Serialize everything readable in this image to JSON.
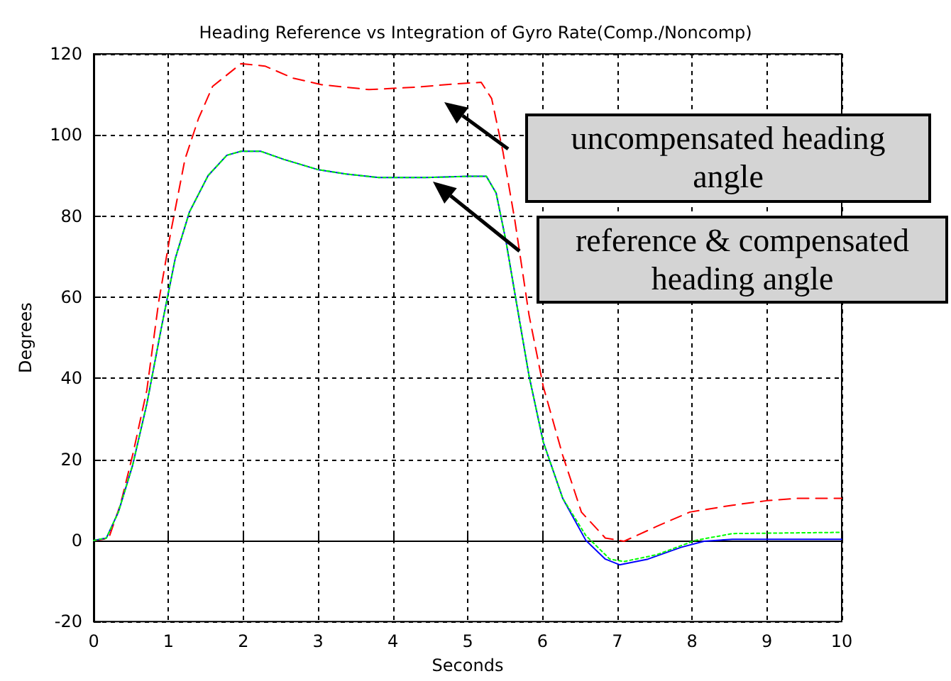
{
  "chart_data": {
    "type": "line",
    "title": "Heading Reference vs Integration of Gyro Rate(Comp./Noncomp)",
    "xlabel": "Seconds",
    "ylabel": "Degrees",
    "xlim": [
      0,
      10
    ],
    "xticks": [
      0,
      1,
      2,
      3,
      4,
      5,
      6,
      7,
      8,
      9,
      10
    ],
    "ylim": [
      -20,
      120
    ],
    "yticks": [
      -20,
      0,
      20,
      40,
      60,
      80,
      100,
      120
    ],
    "grid": true,
    "marker": "none",
    "series": [
      {
        "color": "#ff0000",
        "line_style": "dashed",
        "x": [
          0,
          0.2,
          0.36,
          0.52,
          0.71,
          0.87,
          1.03,
          1.22,
          1.4,
          1.59,
          1.97,
          2.29,
          2.67,
          3.05,
          3.68,
          4.32,
          4.82,
          5.18,
          5.32,
          5.47,
          5.63,
          5.82,
          6.01,
          6.27,
          6.52,
          6.84,
          7.09,
          7.53,
          7.97,
          8.54,
          8.99,
          9.43,
          10
        ],
        "values": [
          0,
          0.5,
          9,
          21,
          37,
          59,
          76,
          94,
          104,
          112,
          117.6,
          117,
          114,
          112.4,
          111.2,
          111.8,
          112.6,
          113,
          109,
          96,
          79,
          55.6,
          38,
          21,
          7,
          0.6,
          -0.2,
          3.5,
          7,
          8.7,
          9.8,
          10.4,
          10.4
        ]
      },
      {
        "color": "#0000ff",
        "line_style": "solid",
        "x": [
          0,
          0.17,
          0.33,
          0.52,
          0.71,
          0.9,
          1.09,
          1.28,
          1.53,
          1.78,
          1.97,
          2.23,
          2.54,
          2.99,
          3.37,
          3.81,
          4.44,
          5.0,
          5.25,
          5.38,
          5.51,
          5.63,
          5.82,
          6.01,
          6.27,
          6.58,
          6.84,
          7.03,
          7.41,
          7.85,
          8.16,
          8.54,
          10
        ],
        "values": [
          0,
          0.6,
          7,
          18.5,
          33.6,
          52,
          69.5,
          81,
          90,
          95,
          96,
          96,
          94,
          91.5,
          90.4,
          89.5,
          89.5,
          89.8,
          89.8,
          85.7,
          74,
          61,
          40.6,
          24.3,
          10.4,
          0,
          -4.6,
          -6,
          -4.6,
          -1.7,
          -0.2,
          0.3,
          0.3
        ]
      },
      {
        "color": "#00ff00",
        "line_style": "dotted",
        "x": [
          0,
          0.17,
          0.33,
          0.52,
          0.71,
          0.9,
          1.09,
          1.28,
          1.53,
          1.78,
          1.97,
          2.23,
          2.54,
          2.99,
          3.37,
          3.81,
          4.44,
          5.0,
          5.25,
          5.38,
          5.51,
          5.63,
          5.82,
          6.01,
          6.27,
          6.58,
          6.9,
          7.09,
          7.53,
          8.04,
          8.54,
          10
        ],
        "values": [
          0,
          0.6,
          7,
          18.5,
          33.6,
          52,
          69.5,
          81,
          90,
          95,
          96,
          96,
          94,
          91.5,
          90.4,
          89.5,
          89.5,
          89.8,
          89.8,
          85.7,
          74,
          61,
          40.6,
          24.3,
          10.4,
          1.2,
          -4.6,
          -5.2,
          -3.5,
          0,
          1.7,
          2
        ]
      }
    ],
    "annotations": [
      "uncompensated heading angle",
      "reference & compensated heading angle"
    ]
  }
}
